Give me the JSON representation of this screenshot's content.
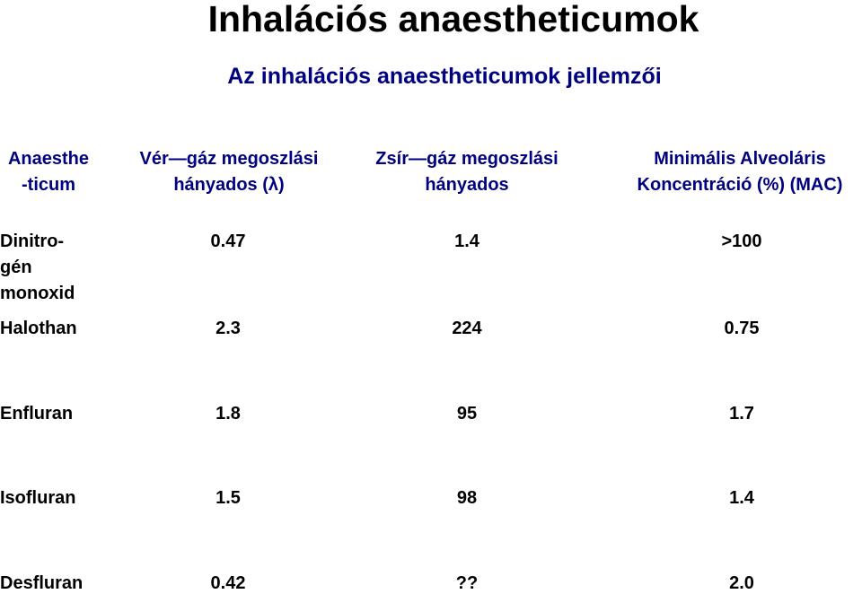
{
  "title": "Inhalációs anaestheticumok",
  "subtitle": "Az inhalációs anaestheticumok jellemzői",
  "columns": [
    "Anaesthe\n-ticum",
    "Vér—gáz megoszlási\nhányados (λ)",
    "Zsír—gáz megoszlási\nhányados",
    "Minimális Alveoláris\nKoncentráció (%) (MAC)"
  ],
  "rows": [
    {
      "name": "Dinitro-\ngén\nmonoxid",
      "blood_gas": "0.47",
      "fat_gas": "1.4",
      "mac": ">100"
    },
    {
      "name": "Halothan",
      "blood_gas": "2.3",
      "fat_gas": "224",
      "mac": "0.75"
    },
    {
      "name": "Enfluran",
      "blood_gas": "1.8",
      "fat_gas": "95",
      "mac": "1.7"
    },
    {
      "name": "Isofluran",
      "blood_gas": "1.5",
      "fat_gas": "98",
      "mac": "1.4"
    },
    {
      "name": "Desfluran",
      "blood_gas": "0.42",
      "fat_gas": "??",
      "mac": "2.0"
    }
  ],
  "colors": {
    "title": "#000000",
    "header": "#000080",
    "body": "#000000"
  }
}
